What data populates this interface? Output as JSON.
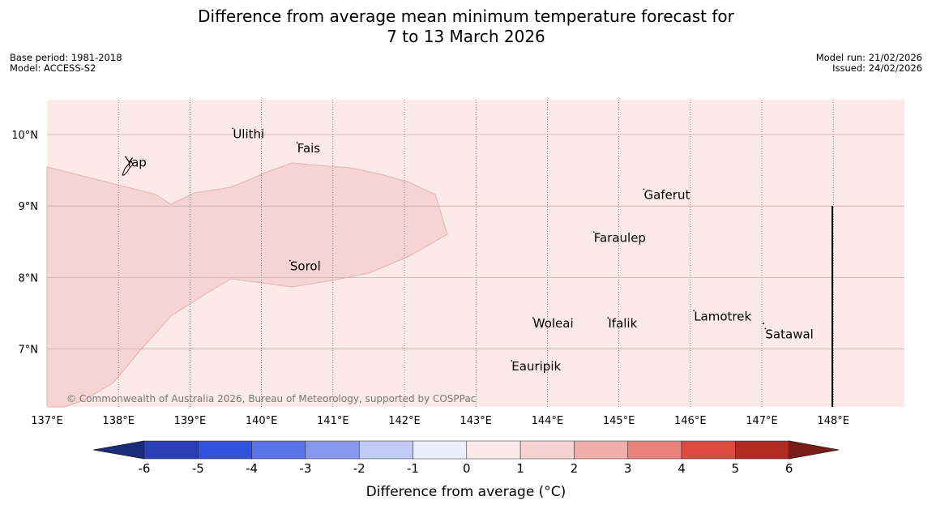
{
  "title_line1": "Difference from average mean minimum temperature forecast for",
  "title_line2": "7 to 13 March 2026",
  "base_period": "Base period: 1981-2018",
  "model": "Model: ACCESS-S2",
  "model_run": "Model run: 21/02/2026",
  "issued": "Issued: 24/02/2026",
  "copyright": "© Commonwealth of Australia 2026, Bureau of Meteorology, supported by COSPPac",
  "lon_labels": [
    "137°E",
    "138°E",
    "139°E",
    "140°E",
    "141°E",
    "142°E",
    "143°E",
    "144°E",
    "145°E",
    "146°E",
    "147°E",
    "148°E"
  ],
  "lat_labels": [
    "10°N",
    "9°N",
    "8°N",
    "7°N"
  ],
  "places": [
    {
      "name": "Yap",
      "lon": 138.1,
      "lat": 9.55
    },
    {
      "name": "Ulithi",
      "lon": 139.6,
      "lat": 9.95
    },
    {
      "name": "Fais",
      "lon": 140.5,
      "lat": 9.75
    },
    {
      "name": "Gaferut",
      "lon": 145.35,
      "lat": 9.1
    },
    {
      "name": "Faraulep",
      "lon": 144.65,
      "lat": 8.5
    },
    {
      "name": "Sorol",
      "lon": 140.4,
      "lat": 8.1
    },
    {
      "name": "Lamotrek",
      "lon": 146.05,
      "lat": 7.4
    },
    {
      "name": "Woleai",
      "lon": 143.8,
      "lat": 7.3
    },
    {
      "name": "Ifalik",
      "lon": 144.85,
      "lat": 7.3
    },
    {
      "name": "Satawal",
      "lon": 147.05,
      "lat": 7.15
    },
    {
      "name": "Eauripik",
      "lon": 143.5,
      "lat": 6.7
    }
  ],
  "colorbar": {
    "label": "Difference from average (°C)",
    "ticks": [
      "-6",
      "-5",
      "-4",
      "-3",
      "-2",
      "-1",
      "0",
      "1",
      "2",
      "3",
      "4",
      "5",
      "6"
    ],
    "colors": [
      "#1b2a7a",
      "#2a3fb5",
      "#3452e0",
      "#5a73e6",
      "#8797ee",
      "#c1c9f5",
      "#ebeefc",
      "#fce9e8",
      "#f6d3d1",
      "#efaea9",
      "#e9827b",
      "#dd4a40",
      "#b12a22",
      "#7a1c17"
    ]
  },
  "fill_colors": {
    "background": "#fbeae8",
    "region": "#f5d4d1",
    "region_edge": "#e4b4b0"
  }
}
